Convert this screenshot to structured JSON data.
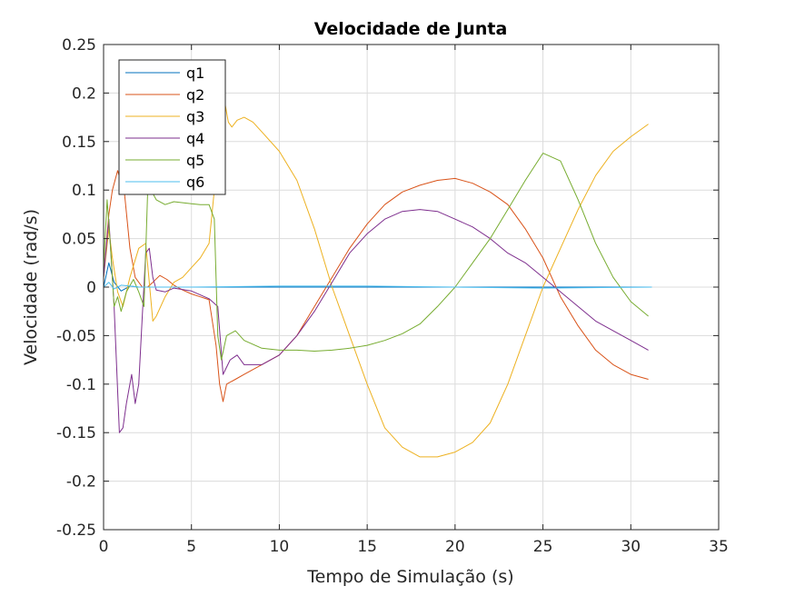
{
  "chart_data": {
    "type": "line",
    "title": "Velocidade de Junta",
    "xlabel": "Tempo de Simulação (s)",
    "ylabel": "Velocidade (rad/s)",
    "xlim": [
      0,
      35
    ],
    "ylim": [
      -0.25,
      0.25
    ],
    "xticks": [
      0,
      5,
      10,
      15,
      20,
      25,
      30,
      35
    ],
    "xtick_labels": [
      "0",
      "5",
      "10",
      "15",
      "20",
      "25",
      "30",
      "35"
    ],
    "yticks": [
      0.25,
      0.2,
      0.15,
      0.1,
      0.05,
      0,
      -0.05,
      -0.1,
      -0.15,
      -0.2,
      -0.25
    ],
    "ytick_labels": [
      "0.25",
      "0.2",
      "0.15",
      "0.1",
      "0.05",
      "0",
      "-0.05",
      "-0.1",
      "-0.15",
      "-0.2",
      "-0.25"
    ],
    "grid": true,
    "legend_position": "top-left",
    "series": [
      {
        "name": "q1",
        "color": "#0072BD",
        "x": [
          0,
          0.3,
          0.6,
          1.0,
          1.5,
          2.0,
          5,
          10,
          15,
          20,
          25,
          31.2
        ],
        "y": [
          0,
          0.025,
          0.005,
          -0.004,
          0.001,
          0,
          0,
          0,
          0,
          0,
          0,
          0
        ]
      },
      {
        "name": "q2",
        "color": "#D95319",
        "x": [
          0,
          0.3,
          0.5,
          0.8,
          1.2,
          1.5,
          1.8,
          2.2,
          2.5,
          2.8,
          3.2,
          3.6,
          4.0,
          4.5,
          5.0,
          5.5,
          6.0,
          6.4,
          6.6,
          6.8,
          7.0,
          7.5,
          8.0,
          9.0,
          10.0,
          11.0,
          12.0,
          13.0,
          14.0,
          15.0,
          16.0,
          17.0,
          18.0,
          19.0,
          20.0,
          21.0,
          22.0,
          23.0,
          24.0,
          25.0,
          26.0,
          27.0,
          28.0,
          29.0,
          30.0,
          31.0
        ],
        "y": [
          0.01,
          0.075,
          0.1,
          0.12,
          0.095,
          0.04,
          0.01,
          0,
          0,
          0.005,
          0.012,
          0.008,
          0.002,
          -0.003,
          -0.007,
          -0.01,
          -0.013,
          -0.06,
          -0.1,
          -0.118,
          -0.1,
          -0.095,
          -0.09,
          -0.08,
          -0.07,
          -0.05,
          -0.02,
          0.01,
          0.04,
          0.065,
          0.085,
          0.098,
          0.105,
          0.11,
          0.112,
          0.107,
          0.098,
          0.085,
          0.06,
          0.03,
          -0.01,
          -0.04,
          -0.065,
          -0.08,
          -0.09,
          -0.095
        ]
      },
      {
        "name": "q3",
        "color": "#EDB120",
        "x": [
          0,
          0.3,
          0.5,
          0.8,
          1.1,
          1.5,
          2.0,
          2.4,
          2.6,
          2.8,
          3.0,
          3.5,
          4.0,
          4.5,
          5.0,
          5.5,
          6.0,
          6.3,
          6.5,
          6.7,
          6.9,
          7.1,
          7.3,
          7.6,
          8.0,
          8.5,
          9.0,
          10.0,
          11.0,
          12.0,
          13.0,
          14.0,
          15.0,
          16.0,
          17.0,
          18.0,
          19.0,
          20.0,
          21.0,
          22.0,
          23.0,
          24.0,
          25.0,
          26.0,
          27.0,
          28.0,
          29.0,
          30.0,
          31.0
        ],
        "y": [
          0.01,
          0.06,
          0.03,
          -0.005,
          -0.02,
          0.01,
          0.04,
          0.045,
          0.005,
          -0.035,
          -0.03,
          -0.01,
          0.005,
          0.01,
          0.02,
          0.03,
          0.045,
          0.1,
          0.2,
          0.215,
          0.19,
          0.17,
          0.165,
          0.172,
          0.175,
          0.17,
          0.16,
          0.14,
          0.11,
          0.06,
          0.0,
          -0.05,
          -0.1,
          -0.145,
          -0.165,
          -0.175,
          -0.175,
          -0.17,
          -0.16,
          -0.14,
          -0.1,
          -0.05,
          0.0,
          0.04,
          0.08,
          0.115,
          0.14,
          0.155,
          0.168
        ]
      },
      {
        "name": "q4",
        "color": "#7E2F8E",
        "x": [
          0,
          0.3,
          0.6,
          0.9,
          1.1,
          1.3,
          1.6,
          1.8,
          2.0,
          2.2,
          2.4,
          2.6,
          2.8,
          3.0,
          3.5,
          4.0,
          5.0,
          6.0,
          6.5,
          6.8,
          7.2,
          7.6,
          8.0,
          9.0,
          10.0,
          11.0,
          12.0,
          13.0,
          14.0,
          15.0,
          16.0,
          17.0,
          18.0,
          19.0,
          20.0,
          21.0,
          22.0,
          23.0,
          24.0,
          25.0,
          26.0,
          27.0,
          28.0,
          29.0,
          30.0,
          31.0
        ],
        "y": [
          0.01,
          0.07,
          -0.02,
          -0.15,
          -0.145,
          -0.12,
          -0.09,
          -0.12,
          -0.1,
          -0.03,
          0.035,
          0.04,
          0.01,
          -0.003,
          -0.005,
          -0.001,
          -0.004,
          -0.012,
          -0.02,
          -0.09,
          -0.075,
          -0.07,
          -0.08,
          -0.08,
          -0.07,
          -0.05,
          -0.025,
          0.005,
          0.035,
          0.055,
          0.07,
          0.078,
          0.08,
          0.078,
          0.07,
          0.062,
          0.05,
          0.035,
          0.025,
          0.01,
          -0.005,
          -0.02,
          -0.035,
          -0.045,
          -0.055,
          -0.065
        ]
      },
      {
        "name": "q5",
        "color": "#77AC30",
        "x": [
          0,
          0.2,
          0.4,
          0.6,
          0.8,
          1.0,
          1.3,
          1.7,
          2.0,
          2.3,
          2.5,
          2.7,
          3.0,
          3.5,
          4.0,
          4.5,
          5.0,
          5.5,
          6.0,
          6.3,
          6.5,
          6.7,
          7.0,
          7.5,
          8.0,
          9.0,
          10.0,
          11.0,
          12.0,
          13.0,
          14.0,
          15.0,
          16.0,
          17.0,
          18.0,
          19.0,
          20.0,
          21.0,
          22.0,
          23.0,
          24.0,
          25.0,
          26.0,
          27.0,
          28.0,
          29.0,
          30.0,
          31.0
        ],
        "y": [
          0.02,
          0.09,
          0.04,
          -0.02,
          -0.01,
          -0.025,
          -0.005,
          0.008,
          -0.005,
          -0.02,
          0.095,
          0.1,
          0.09,
          0.085,
          0.088,
          0.087,
          0.086,
          0.085,
          0.085,
          0.07,
          -0.05,
          -0.075,
          -0.05,
          -0.045,
          -0.055,
          -0.063,
          -0.065,
          -0.065,
          -0.066,
          -0.065,
          -0.063,
          -0.06,
          -0.055,
          -0.048,
          -0.038,
          -0.02,
          0.0,
          0.025,
          0.05,
          0.08,
          0.11,
          0.138,
          0.13,
          0.09,
          0.045,
          0.01,
          -0.015,
          -0.03
        ]
      },
      {
        "name": "q6",
        "color": "#4DBEEE",
        "x": [
          0,
          0.3,
          0.6,
          1.0,
          1.5,
          2.0,
          5,
          10,
          15,
          20,
          25,
          31.2
        ],
        "y": [
          0,
          0.005,
          -0.002,
          0.002,
          0.001,
          0.0,
          0.0,
          0.001,
          0.001,
          0.0,
          -0.001,
          0.0
        ]
      }
    ]
  }
}
